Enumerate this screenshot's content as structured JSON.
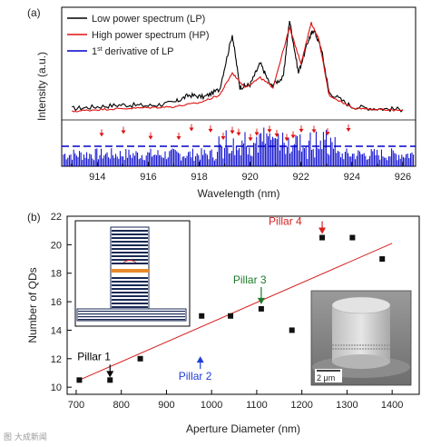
{
  "panel_a": {
    "label": "(a)",
    "ylabel": "Intensity (a.u.)",
    "xlabel": "Wavelength (nm)",
    "legend": [
      {
        "name": "Low power spectrum (LP)",
        "color": "#000000"
      },
      {
        "name": "High power spectrum (HP)",
        "color": "#e01010"
      },
      {
        "prefix": "1",
        "sup": "st",
        "rest": " derivative of LP",
        "color": "#0000cc"
      }
    ],
    "xticks": [
      "914",
      "916",
      "918",
      "920",
      "922",
      "924",
      "926"
    ]
  },
  "panel_b": {
    "label": "(b)",
    "scale_bar": "2 μm",
    "annotations": [
      {
        "text": "Pillar 1",
        "color": "#000000",
        "x": 775,
        "y": 10.5
      },
      {
        "text": "Pillar 2",
        "color": "#1f3fd6",
        "x": 975,
        "y": 12.3
      },
      {
        "text": "Pillar 3",
        "color": "#1e7a2a",
        "x": 1110,
        "y": 15.5
      },
      {
        "text": "Pillar 4",
        "color": "#d61f1f",
        "x": 1245,
        "y": 20.5
      }
    ]
  },
  "watermark": "图 大成新闻",
  "chart_data": [
    {
      "type": "line",
      "xlabel": "Wavelength (nm)",
      "ylabel": "Intensity (a.u.)",
      "xlim": [
        912.6,
        926.5
      ],
      "x_ticks": [
        914,
        916,
        918,
        920,
        922,
        924,
        926
      ],
      "series": [
        {
          "name": "Low power spectrum (LP)",
          "color": "#000000",
          "x": [
            913.0,
            914.0,
            915.0,
            916.0,
            917.0,
            917.6,
            918.2,
            918.8,
            919.3,
            919.6,
            920.0,
            920.4,
            920.8,
            921.3,
            921.55,
            921.9,
            922.3,
            922.5,
            922.8,
            923.1,
            924.0,
            925.0,
            926.0
          ],
          "y": [
            0.08,
            0.1,
            0.12,
            0.11,
            0.14,
            0.22,
            0.2,
            0.28,
            0.85,
            0.3,
            0.33,
            0.55,
            0.32,
            0.4,
            1.0,
            0.45,
            0.8,
            0.9,
            0.7,
            0.25,
            0.1,
            0.08,
            0.07
          ]
        },
        {
          "name": "High power spectrum (HP)",
          "color": "#e01010",
          "x": [
            913.0,
            914.0,
            915.0,
            916.0,
            917.0,
            918.0,
            918.8,
            919.3,
            919.8,
            920.4,
            920.9,
            921.55,
            922.0,
            922.4,
            922.7,
            923.1,
            924.0,
            925.0,
            926.0
          ],
          "y": [
            0.05,
            0.07,
            0.08,
            0.09,
            0.1,
            0.14,
            0.22,
            0.45,
            0.3,
            0.4,
            0.3,
            0.92,
            0.55,
            0.97,
            0.8,
            0.22,
            0.09,
            0.07,
            0.06
          ]
        }
      ]
    },
    {
      "type": "scatter",
      "xlabel": "Aperture Diameter (nm)",
      "ylabel": "Number of QDs",
      "xlim": [
        680,
        1460
      ],
      "ylim": [
        9.5,
        22
      ],
      "x_ticks": [
        700,
        800,
        900,
        1000,
        1100,
        1200,
        1300,
        1400
      ],
      "y_ticks": [
        10,
        12,
        14,
        16,
        18,
        20,
        22
      ],
      "points": [
        [
          707,
          10.5
        ],
        [
          775,
          10.5
        ],
        [
          842,
          12
        ],
        [
          978,
          15
        ],
        [
          1042,
          15
        ],
        [
          1110,
          15.5
        ],
        [
          1178,
          14
        ],
        [
          1245,
          20.5
        ],
        [
          1312,
          20.5
        ],
        [
          1378,
          19
        ]
      ],
      "fit_line": [
        [
          707,
          10.5
        ],
        [
          1400,
          20.1
        ]
      ],
      "fit_color": "#d61f1f"
    }
  ]
}
